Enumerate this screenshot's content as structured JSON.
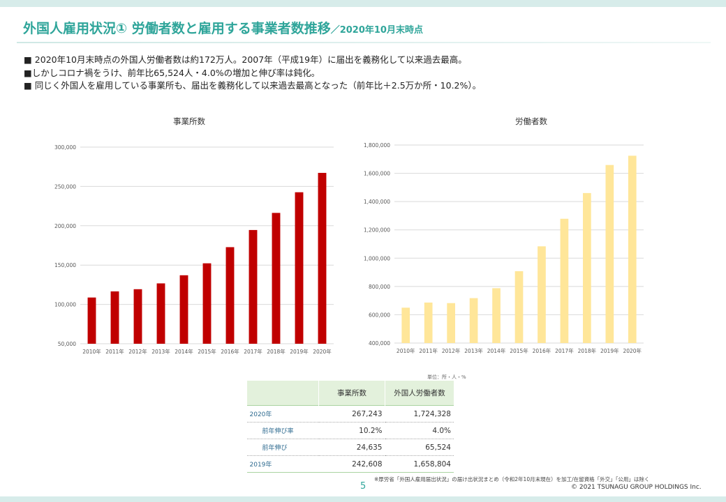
{
  "header": {
    "title": "外国人雇用状況① 労働者数と雇用する事業者数推移",
    "subtitle": "／2020年10月末時点"
  },
  "bullets": [
    "■ 2020年10月末時点の外国人労働者数は約172万人。2007年（平成19年）に届出を義務化して以来過去最高。",
    "■しかしコロナ禍をうけ、前年比65,524人・4.0%の増加と伸び率は鈍化。",
    "■ 同じく外国人を雇用している事業所も、届出を義務化して以来過去最高となった（前年比＋2.5万か所・10.2%）。"
  ],
  "chart_data": [
    {
      "type": "bar",
      "title": "事業所数",
      "categories": [
        "2010年",
        "2011年",
        "2012年",
        "2013年",
        "2014年",
        "2015年",
        "2016年",
        "2017年",
        "2018年",
        "2019年",
        "2020年"
      ],
      "values": [
        108760,
        116561,
        119323,
        126729,
        137053,
        152261,
        172798,
        194595,
        216348,
        242608,
        267243
      ],
      "ylim": [
        50000,
        300000
      ],
      "yticks": [
        50000,
        100000,
        150000,
        200000,
        250000,
        300000
      ],
      "ytick_labels": [
        "50,000",
        "100,000",
        "150,000",
        "200,000",
        "250,000",
        "300,000"
      ],
      "color": "#c00000",
      "grid": true
    },
    {
      "type": "bar",
      "title": "労働者数",
      "categories": [
        "2010年",
        "2011年",
        "2012年",
        "2013年",
        "2014年",
        "2015年",
        "2016年",
        "2017年",
        "2018年",
        "2019年",
        "2020年"
      ],
      "values": [
        649982,
        686246,
        682450,
        717504,
        787627,
        907896,
        1083769,
        1278670,
        1460463,
        1658804,
        1724328
      ],
      "ylim": [
        400000,
        1800000
      ],
      "yticks": [
        400000,
        600000,
        800000,
        1000000,
        1200000,
        1400000,
        1600000,
        1800000
      ],
      "ytick_labels": [
        "400,000",
        "600,000",
        "800,000",
        "1,000,000",
        "1,200,000",
        "1,400,000",
        "1,600,000",
        "1,800,000"
      ],
      "color": "#ffe699",
      "grid": true
    }
  ],
  "table": {
    "unit_note": "単位：所・人・%",
    "headers": [
      "",
      "事業所数",
      "外国人労働者数"
    ],
    "rows": [
      {
        "label": "2020年",
        "offices": "267,243",
        "workers": "1,724,328"
      },
      {
        "label": "前年伸び率",
        "offices": "10.2%",
        "workers": "4.0%"
      },
      {
        "label": "前年伸び",
        "offices": "24,635",
        "workers": "65,524"
      },
      {
        "label": "2019年",
        "offices": "242,608",
        "workers": "1,658,804"
      }
    ]
  },
  "footer": {
    "page": "5",
    "source": "※厚労省「外国人雇用届出状況」の届け出状況まとめ（令和2年10月末現在）を加工/在留資格「外交」「公用」は除く",
    "copyright": "© 2021 TSUNAGU GROUP HOLDINGS Inc."
  },
  "colors": {
    "accent": "#2fa59a",
    "bar_offices": "#c00000",
    "bar_workers": "#ffe699",
    "table_header": "#e3f1dc"
  }
}
